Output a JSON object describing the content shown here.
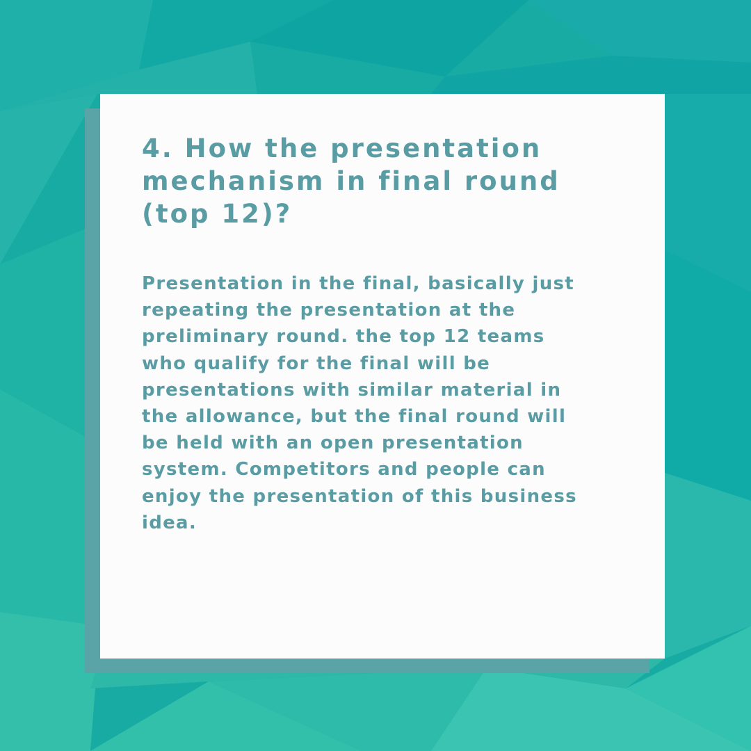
{
  "card": {
    "heading_lines": [
      "4. How the presentation",
      "mechanism in final round",
      "(top 12)?"
    ],
    "body_lines": [
      "Presentation in the final, basically just",
      "repeating the presentation at the",
      "preliminary round. the top 12 teams",
      "who qualify for the final will be",
      "presentations with similar material in",
      "the allowance, but the final round will",
      "be held with an open presentation",
      "system. Competitors and people can",
      "enjoy the presentation of this business",
      "idea."
    ]
  },
  "colors": {
    "background": "#1db3a6",
    "card": "#fcfcfc",
    "card_shadow": "#5aa3a6",
    "text": "#5a9ca3"
  }
}
